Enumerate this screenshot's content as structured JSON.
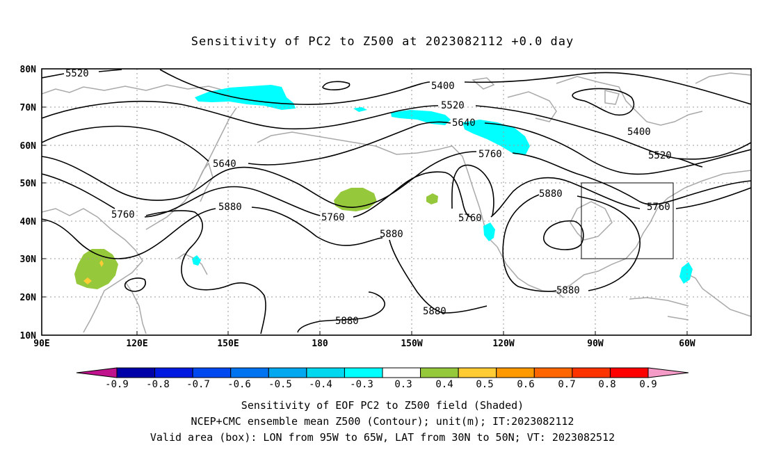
{
  "title": "Sensitivity of PC2 to Z500 at 2023082112 +0.0 day",
  "lat_labels": [
    "80N",
    "70N",
    "60N",
    "50N",
    "40N",
    "30N",
    "20N",
    "10N"
  ],
  "lon_labels": [
    "90E",
    "120E",
    "150E",
    "180",
    "150W",
    "120W",
    "90W",
    "60W"
  ],
  "contour_labels": {
    "c5520_a": "5520",
    "c5400_a": "5400",
    "c5520_b": "5520",
    "c5640_a": "5640",
    "c5400_b": "5400",
    "c5520_c": "5520",
    "c5760_a": "5760",
    "c5640_b": "5640",
    "c5880_a": "5880",
    "c5760_b": "5760",
    "c5760_c": "5760",
    "c5880_b": "5880",
    "c5760_d": "5760",
    "c5760_e": "5760",
    "c5880_c": "5880",
    "c5880_d": "5880",
    "c5880_e": "5880",
    "c5880_f": "5880"
  },
  "colorbar": {
    "labels": [
      "-0.9",
      "-0.8",
      "-0.7",
      "-0.6",
      "-0.5",
      "-0.4",
      "-0.3",
      "0.3",
      "0.4",
      "0.5",
      "0.6",
      "0.7",
      "0.8",
      "0.9"
    ],
    "colors": {
      "below": "#c0128c",
      "bins": [
        "#0000a8",
        "#0018e0",
        "#0048f0",
        "#0074f0",
        "#00a8f0",
        "#00d8f0",
        "#00ffff",
        "#ffffff",
        "#96c83c",
        "#ffcc33",
        "#ff9900",
        "#ff6600",
        "#ff3300",
        "#ff0000"
      ],
      "above": "#f59bc8"
    }
  },
  "shading_colors": {
    "cyan": "#00ffff",
    "green": "#96c83c",
    "yellow": "#ffcc33"
  },
  "captions": {
    "line1": "Sensitivity of EOF PC2 to Z500 field (Shaded)",
    "line2": "NCEP+CMC ensemble mean Z500 (Contour); unit(m); IT:2023082112",
    "line3": "Valid area (box): LON from 95W to 65W, LAT from 30N to 50N; VT: 2023082512"
  }
}
